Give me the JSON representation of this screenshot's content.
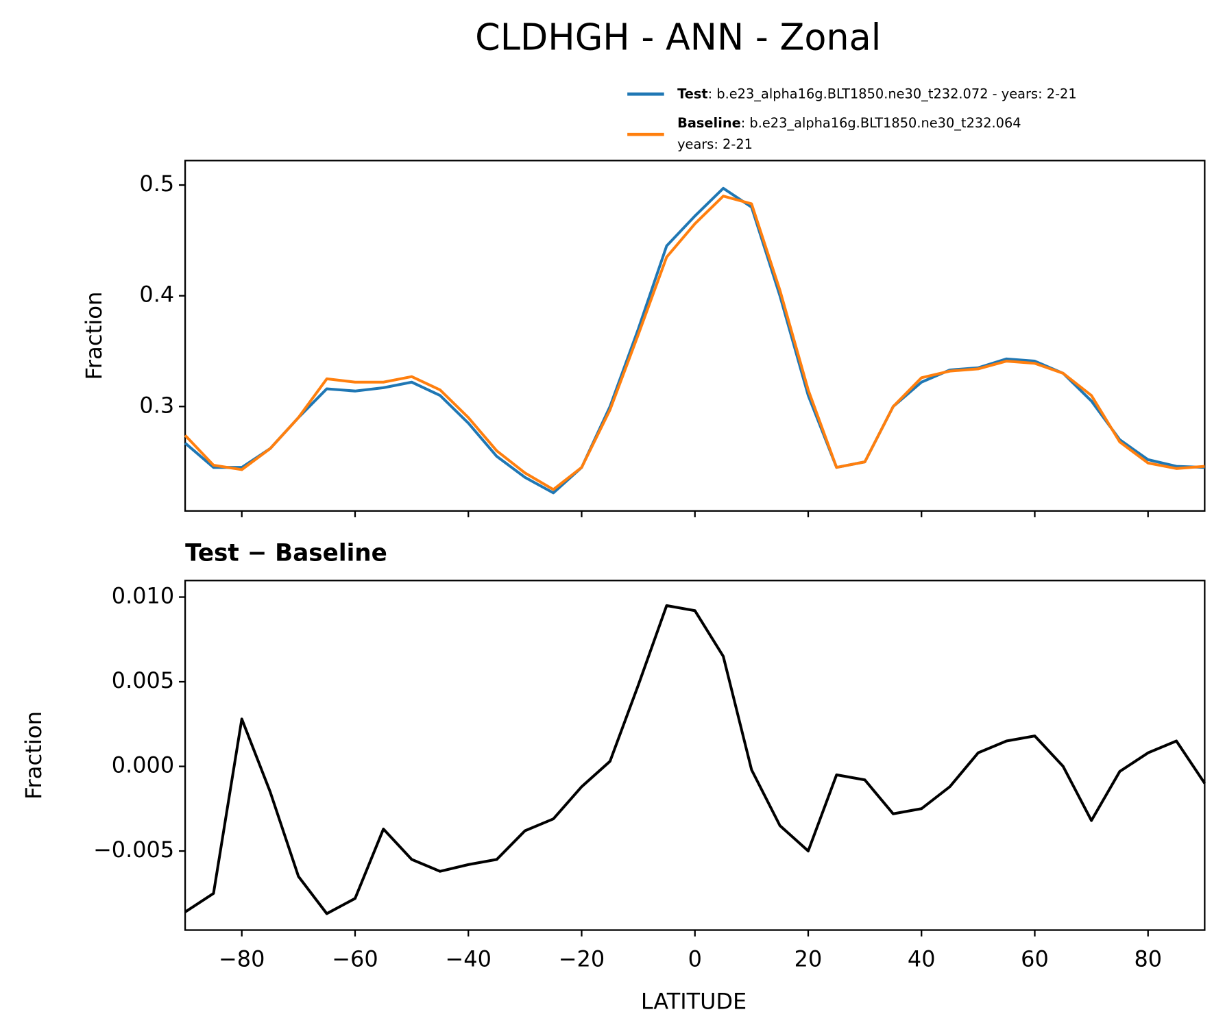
{
  "chart_data": [
    {
      "type": "line",
      "title": "CLDHGH - ANN - Zonal",
      "ylabel": "Fraction",
      "x": [
        -90,
        -85,
        -80,
        -75,
        -70,
        -65,
        -60,
        -55,
        -50,
        -45,
        -40,
        -35,
        -30,
        -25,
        -20,
        -15,
        -10,
        -5,
        0,
        5,
        10,
        15,
        20,
        25,
        30,
        35,
        40,
        45,
        50,
        55,
        60,
        65,
        70,
        75,
        80,
        85,
        90
      ],
      "series": [
        {
          "name": "Test",
          "description": ": b.e23_alpha16g.BLT1850.ne30_t232.072 - years: 2-21",
          "color": "#1f77b4",
          "values": [
            0.267,
            0.245,
            0.245,
            0.262,
            0.29,
            0.316,
            0.314,
            0.317,
            0.322,
            0.31,
            0.285,
            0.255,
            0.236,
            0.222,
            0.245,
            0.3,
            0.37,
            0.445,
            0.472,
            0.497,
            0.48,
            0.4,
            0.31,
            0.245,
            0.25,
            0.3,
            0.322,
            0.333,
            0.335,
            0.343,
            0.341,
            0.33,
            0.305,
            0.27,
            0.252,
            0.246,
            0.245
          ]
        },
        {
          "name": "Baseline",
          "description": ": b.e23_alpha16g.BLT1850.ne30_t232.064",
          "description2": "years: 2-21",
          "color": "#ff7f0e",
          "values": [
            0.274,
            0.247,
            0.243,
            0.262,
            0.29,
            0.325,
            0.322,
            0.322,
            0.327,
            0.315,
            0.29,
            0.26,
            0.24,
            0.225,
            0.245,
            0.297,
            0.365,
            0.435,
            0.465,
            0.49,
            0.483,
            0.405,
            0.315,
            0.245,
            0.25,
            0.3,
            0.326,
            0.332,
            0.334,
            0.341,
            0.339,
            0.33,
            0.31,
            0.268,
            0.249,
            0.244,
            0.246
          ]
        }
      ],
      "xlim": [
        -90,
        90
      ],
      "xticks": [
        -80,
        -60,
        -40,
        -20,
        0,
        20,
        40,
        60,
        80
      ],
      "ylim": [
        0.2057,
        0.5221
      ],
      "yticks": [
        0.3,
        0.4,
        0.5
      ]
    },
    {
      "type": "line",
      "subtitle": "Test − Baseline",
      "ylabel": "Fraction",
      "xlabel": "LATITUDE",
      "x": [
        -90,
        -85,
        -80,
        -75,
        -70,
        -65,
        -60,
        -55,
        -50,
        -45,
        -40,
        -35,
        -30,
        -25,
        -20,
        -15,
        -10,
        -5,
        0,
        5,
        10,
        15,
        20,
        25,
        30,
        35,
        40,
        45,
        50,
        55,
        60,
        65,
        70,
        75,
        80,
        85,
        90
      ],
      "series": [
        {
          "color": "#000000",
          "values": [
            -0.0086,
            -0.0075,
            0.0028,
            -0.0015,
            -0.0065,
            -0.0087,
            -0.0078,
            -0.0037,
            -0.0055,
            -0.0062,
            -0.0058,
            -0.0055,
            -0.0038,
            -0.0031,
            -0.0012,
            0.0003,
            0.0048,
            0.0095,
            0.0092,
            0.0065,
            -0.0002,
            -0.0035,
            -0.005,
            -0.0005,
            -0.0008,
            -0.0028,
            -0.0025,
            -0.0012,
            0.0008,
            0.0015,
            0.0018,
            0.0,
            -0.0032,
            -0.0003,
            0.0008,
            0.0015,
            -0.001
          ]
        }
      ],
      "xlim": [
        -90,
        90
      ],
      "xticks": [
        {
          "value": -80,
          "label": "−80"
        },
        {
          "value": -60,
          "label": "−60"
        },
        {
          "value": -40,
          "label": "−40"
        },
        {
          "value": -20,
          "label": "−20"
        },
        0,
        20,
        40,
        60,
        80
      ],
      "ylim": [
        -0.00967,
        0.01098
      ],
      "yticks": [
        {
          "value": -0.005,
          "label": "−0.005"
        },
        {
          "value": 0,
          "label": "0.000"
        },
        {
          "value": 0.005,
          "label": "0.005"
        },
        {
          "value": 0.01,
          "label": "0.010"
        }
      ]
    }
  ]
}
